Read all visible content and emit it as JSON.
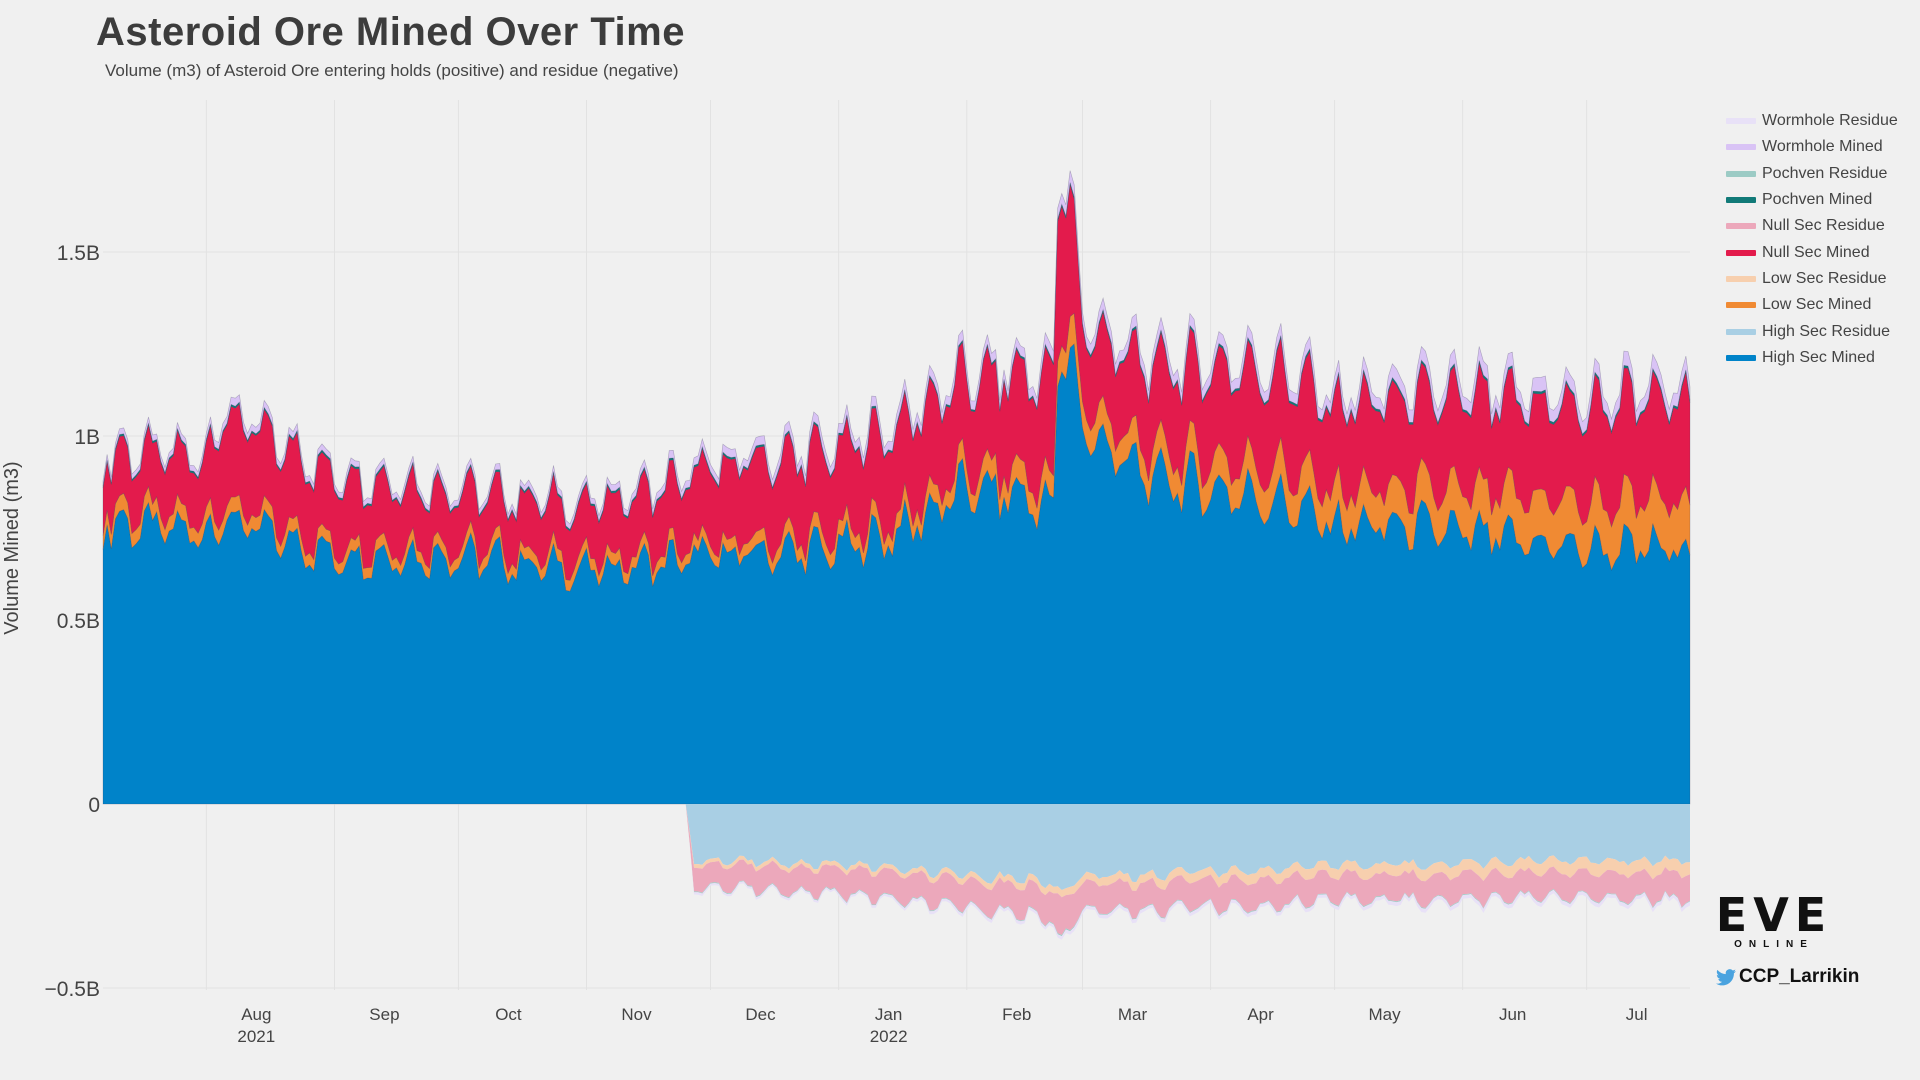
{
  "chart_data": {
    "type": "area",
    "title": "Asteroid Ore Mined Over Time",
    "subtitle": "Volume (m3) of Asteroid Ore entering holds (positive) and residue (negative)",
    "xlabel": "",
    "ylabel": "Volume Mined (m3)",
    "ylim": [
      -0.5,
      1.8
    ],
    "y_unit": "billion m3",
    "grid": true,
    "legend_position": "right",
    "x_start": "2021-07-07",
    "x_end": "2022-07-26",
    "x_ticks": [
      {
        "date": "2021-08-01",
        "label": "Aug",
        "year": "2021"
      },
      {
        "date": "2021-09-01",
        "label": "Sep",
        "year": ""
      },
      {
        "date": "2021-10-01",
        "label": "Oct",
        "year": ""
      },
      {
        "date": "2021-11-01",
        "label": "Nov",
        "year": ""
      },
      {
        "date": "2021-12-01",
        "label": "Dec",
        "year": ""
      },
      {
        "date": "2022-01-01",
        "label": "Jan",
        "year": "2022"
      },
      {
        "date": "2022-02-01",
        "label": "Feb",
        "year": ""
      },
      {
        "date": "2022-03-01",
        "label": "Mar",
        "year": ""
      },
      {
        "date": "2022-04-01",
        "label": "Apr",
        "year": ""
      },
      {
        "date": "2022-05-01",
        "label": "May",
        "year": ""
      },
      {
        "date": "2022-06-01",
        "label": "Jun",
        "year": ""
      },
      {
        "date": "2022-07-01",
        "label": "Jul",
        "year": ""
      }
    ],
    "y_ticks": [
      {
        "value": 1.5,
        "label": "1.5B"
      },
      {
        "value": 1.0,
        "label": "1B"
      },
      {
        "value": 0.5,
        "label": "0.5B"
      },
      {
        "value": 0,
        "label": "0"
      },
      {
        "value": -0.5,
        "label": "−0.5B"
      }
    ],
    "dates": [
      "2021-07-07",
      "2021-08-01",
      "2021-08-05",
      "2021-09-01",
      "2021-10-01",
      "2021-11-01",
      "2021-11-25",
      "2021-11-27",
      "2021-12-01",
      "2022-01-01",
      "2022-01-15",
      "2022-02-01",
      "2022-02-15",
      "2022-02-22",
      "2022-02-23",
      "2022-02-26",
      "2022-03-01",
      "2022-03-15",
      "2022-04-01",
      "2022-04-20",
      "2022-05-01",
      "2022-05-20",
      "2022-06-01",
      "2022-06-15",
      "2022-07-01",
      "2022-07-26"
    ],
    "series": [
      {
        "name": "High Sec Mined",
        "color": "#0083c9",
        "stack": "pos",
        "values": [
          0.75,
          0.72,
          0.76,
          0.66,
          0.66,
          0.62,
          0.65,
          0.66,
          0.66,
          0.68,
          0.72,
          0.84,
          0.82,
          0.78,
          1.16,
          1.22,
          1.0,
          0.88,
          0.84,
          0.8,
          0.74,
          0.74,
          0.72,
          0.7,
          0.68,
          0.68
        ]
      },
      {
        "name": "Low Sec Mined",
        "color": "#f08a33",
        "stack": "pos",
        "values": [
          0.04,
          0.04,
          0.04,
          0.03,
          0.03,
          0.03,
          0.03,
          0.03,
          0.03,
          0.04,
          0.04,
          0.05,
          0.06,
          0.06,
          0.07,
          0.08,
          0.07,
          0.07,
          0.08,
          0.09,
          0.09,
          0.1,
          0.11,
          0.12,
          0.12,
          0.13
        ]
      },
      {
        "name": "Null Sec Mined",
        "color": "#e31b4c",
        "stack": "pos",
        "values": [
          0.14,
          0.16,
          0.24,
          0.18,
          0.14,
          0.14,
          0.18,
          0.18,
          0.2,
          0.22,
          0.24,
          0.24,
          0.26,
          0.28,
          0.4,
          0.34,
          0.2,
          0.22,
          0.24,
          0.25,
          0.22,
          0.24,
          0.25,
          0.25,
          0.25,
          0.28
        ]
      },
      {
        "name": "Pochven Mined",
        "color": "#117a78",
        "stack": "pos",
        "values": [
          0.005,
          0.005,
          0.005,
          0.005,
          0.005,
          0.005,
          0.005,
          0.005,
          0.005,
          0.005,
          0.005,
          0.005,
          0.005,
          0.005,
          0.006,
          0.006,
          0.006,
          0.006,
          0.006,
          0.006,
          0.006,
          0.006,
          0.006,
          0.006,
          0.006,
          0.006
        ]
      },
      {
        "name": "Wormhole Mined",
        "color": "#d9c3f5",
        "stack": "pos",
        "values": [
          0.015,
          0.015,
          0.02,
          0.015,
          0.015,
          0.015,
          0.02,
          0.02,
          0.02,
          0.025,
          0.025,
          0.025,
          0.025,
          0.03,
          0.03,
          0.03,
          0.03,
          0.03,
          0.03,
          0.03,
          0.03,
          0.035,
          0.035,
          0.035,
          0.035,
          0.035
        ]
      },
      {
        "name": "High Sec Residue",
        "color": "#a9cfe4",
        "stack": "neg",
        "values": [
          0,
          0,
          0,
          0,
          0,
          0,
          0,
          -0.16,
          -0.15,
          -0.16,
          -0.17,
          -0.19,
          -0.2,
          -0.21,
          -0.24,
          -0.22,
          -0.19,
          -0.19,
          -0.18,
          -0.17,
          -0.16,
          -0.16,
          -0.16,
          -0.15,
          -0.15,
          -0.15
        ]
      },
      {
        "name": "Low Sec Residue",
        "color": "#f7cfae",
        "stack": "neg",
        "values": [
          0,
          0,
          0,
          0,
          0,
          0,
          0,
          -0.01,
          -0.01,
          -0.012,
          -0.012,
          -0.015,
          -0.017,
          -0.018,
          -0.02,
          -0.019,
          -0.02,
          -0.022,
          -0.024,
          -0.026,
          -0.026,
          -0.028,
          -0.03,
          -0.031,
          -0.032,
          -0.033
        ]
      },
      {
        "name": "Null Sec Residue",
        "color": "#eca8bb",
        "stack": "neg",
        "values": [
          0,
          0,
          0,
          0,
          0,
          0,
          0,
          -0.06,
          -0.06,
          -0.065,
          -0.07,
          -0.07,
          -0.075,
          -0.08,
          -0.11,
          -0.09,
          -0.07,
          -0.07,
          -0.07,
          -0.07,
          -0.065,
          -0.065,
          -0.065,
          -0.065,
          -0.065,
          -0.07
        ]
      },
      {
        "name": "Pochven Residue",
        "color": "#9ccbc5",
        "stack": "neg",
        "values": [
          0,
          0,
          0,
          0,
          0,
          0,
          0,
          -0.002,
          -0.002,
          -0.002,
          -0.002,
          -0.002,
          -0.002,
          -0.002,
          -0.003,
          -0.003,
          -0.002,
          -0.002,
          -0.002,
          -0.002,
          -0.002,
          -0.002,
          -0.002,
          -0.002,
          -0.002,
          -0.002
        ]
      },
      {
        "name": "Wormhole Residue",
        "color": "#e8e1f7",
        "stack": "neg",
        "values": [
          0,
          0,
          0,
          0,
          0,
          0,
          0,
          -0.006,
          -0.006,
          -0.006,
          -0.007,
          -0.008,
          -0.008,
          -0.008,
          -0.01,
          -0.009,
          -0.009,
          -0.009,
          -0.009,
          -0.009,
          -0.009,
          -0.01,
          -0.01,
          -0.01,
          -0.01,
          -0.01
        ]
      }
    ],
    "legend_order": [
      "Wormhole Residue",
      "Wormhole Mined",
      "Pochven Residue",
      "Pochven Mined",
      "Null Sec Residue",
      "Null Sec Mined",
      "Low Sec Residue",
      "Low Sec Mined",
      "High Sec Residue",
      "High Sec Mined"
    ]
  },
  "branding": {
    "logo_text": "EVE",
    "logo_subtext": "ONLINE",
    "handle": "CCP_Larrikin"
  },
  "colors": {
    "background": "#f0f0f0",
    "gridline": "#e2e2e2",
    "twitter_blue": "#4aa3df"
  }
}
